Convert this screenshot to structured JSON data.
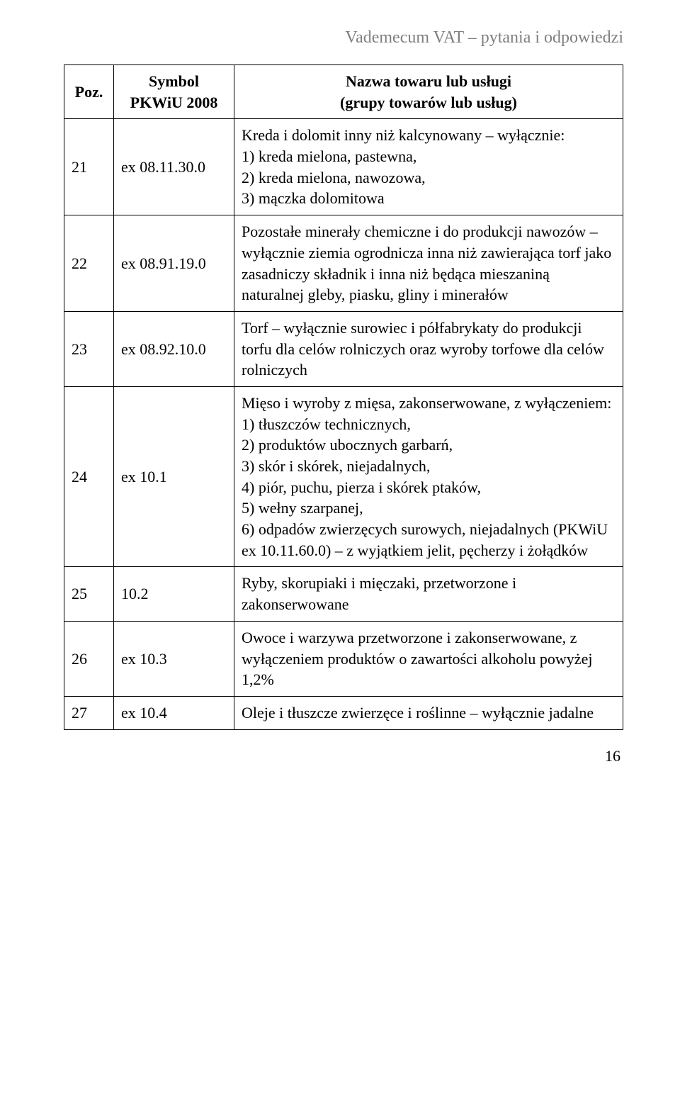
{
  "header_title": "Vademecum VAT – pytania i odpowiedzi",
  "columns": {
    "poz": "Poz.",
    "symbol_line1": "Symbol",
    "symbol_line2": "PKWiU 2008",
    "name_line1": "Nazwa towaru lub usługi",
    "name_line2": "(grupy towarów lub usług)"
  },
  "rows": [
    {
      "poz": "21",
      "symbol": "ex 08.11.30.0",
      "desc": "Kreda i dolomit inny niż kalcynowany – wyłącznie:\n1) kreda mielona, pastewna,\n2) kreda mielona, nawozowa,\n3) mączka dolomitowa"
    },
    {
      "poz": "22",
      "symbol": "ex 08.91.19.0",
      "desc": "Pozostałe minerały chemiczne i do produkcji nawozów – wyłącznie ziemia ogrodnicza inna niż zawierająca torf jako zasadniczy składnik i inna niż będąca mieszaniną naturalnej gleby, piasku, gliny i minerałów"
    },
    {
      "poz": "23",
      "symbol": "ex 08.92.10.0",
      "desc": "Torf – wyłącznie surowiec i półfabrykaty do produkcji torfu dla celów rolniczych oraz wyroby torfowe dla celów rolniczych"
    },
    {
      "poz": "24",
      "symbol": "ex 10.1",
      "desc": "Mięso i wyroby z mięsa, zakonserwowane, z wyłączeniem:\n1) tłuszczów technicznych,\n2) produktów ubocznych garbarń,\n3) skór i skórek, niejadalnych,\n4) piór, puchu, pierza i skórek ptaków,\n5) wełny szarpanej,\n6) odpadów zwierzęcych surowych, niejadalnych (PKWiU ex 10.11.60.0) – z wyjątkiem jelit, pęcherzy i żołądków"
    },
    {
      "poz": "25",
      "symbol": "10.2",
      "desc": "Ryby, skorupiaki i mięczaki, przetworzone i zakonserwowane"
    },
    {
      "poz": "26",
      "symbol": "ex 10.3",
      "desc": "Owoce i warzywa przetworzone i zakonserwowane, z wyłączeniem produktów o zawartości alkoholu powyżej 1,2%"
    },
    {
      "poz": "27",
      "symbol": "ex 10.4",
      "desc": "Oleje i tłuszcze zwierzęce i roślinne – wyłącznie jadalne"
    }
  ],
  "page_number": "16"
}
